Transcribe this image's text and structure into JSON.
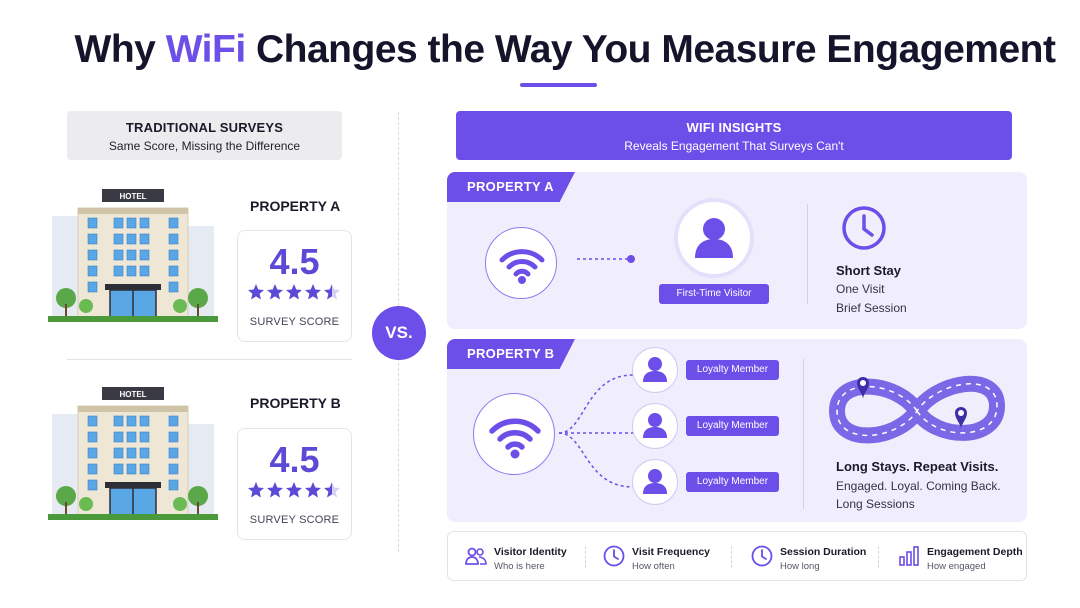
{
  "title": {
    "prefix": "Why ",
    "accent": "WiFi",
    "suffix": " Changes the Way You Measure Engagement"
  },
  "colors": {
    "accent": "#6c4ee8",
    "panel": "#f0eefc",
    "grey_header": "#ececef"
  },
  "left": {
    "header_title": "TRADITIONAL SURVEYS",
    "header_subtitle": "Same Score, Missing the Difference",
    "hotel_sign": "HOTEL",
    "property_a": {
      "label": "PROPERTY A",
      "score": "4.5",
      "caption": "SURVEY SCORE",
      "rating": 4.5
    },
    "property_b": {
      "label": "PROPERTY B",
      "score": "4.5",
      "caption": "SURVEY SCORE",
      "rating": 4.5
    }
  },
  "vs": "VS.",
  "right": {
    "header_title": "WIFI INSIGHTS",
    "header_subtitle": "Reveals Engagement That Surveys Can't",
    "property_a": {
      "tab": "PROPERTY A",
      "visitor_label": "First-Time Visitor",
      "insight_title": "Short Stay",
      "insight_line1": "One Visit",
      "insight_line2": "Brief Session",
      "icon": "clock-icon"
    },
    "property_b": {
      "tab": "PROPERTY B",
      "members": [
        "Loyalty Member",
        "Loyalty Member",
        "Loyalty Member"
      ],
      "insight_title": "Long Stays. Repeat Visits.",
      "insight_line1": "Engaged. Loyal. Coming Back.",
      "insight_line2": "Long Sessions",
      "icon": "infinity-route-icon"
    }
  },
  "legend": [
    {
      "title": "Visitor Identity",
      "sub": "Who is here",
      "icon": "people-icon"
    },
    {
      "title": "Visit Frequency",
      "sub": "How often",
      "icon": "clock-icon"
    },
    {
      "title": "Session Duration",
      "sub": "How long",
      "icon": "clock-icon"
    },
    {
      "title": "Engagement Depth",
      "sub": "How engaged",
      "icon": "bar-chart-icon"
    }
  ]
}
